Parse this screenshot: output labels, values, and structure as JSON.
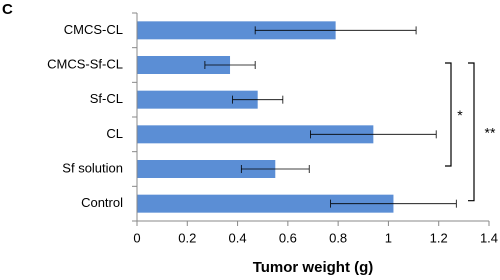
{
  "chart_data": {
    "type": "hbar",
    "panel_label": "C",
    "xlabel": "Tumor weight (g)",
    "categories": [
      "CMCS-CL",
      "CMCS-Sf-CL",
      "Sf-CL",
      "CL",
      "Sf solution",
      "Control"
    ],
    "values": [
      0.79,
      0.37,
      0.48,
      0.94,
      0.55,
      1.02
    ],
    "errors": [
      0.32,
      0.1,
      0.1,
      0.25,
      0.135,
      0.25
    ],
    "color": "#5b8ed5",
    "xlim": [
      0,
      1.4
    ],
    "xticks": [
      0,
      0.2,
      0.4,
      0.6,
      0.8,
      1,
      1.2,
      1.4
    ],
    "annotations": [
      "*",
      "**"
    ]
  }
}
